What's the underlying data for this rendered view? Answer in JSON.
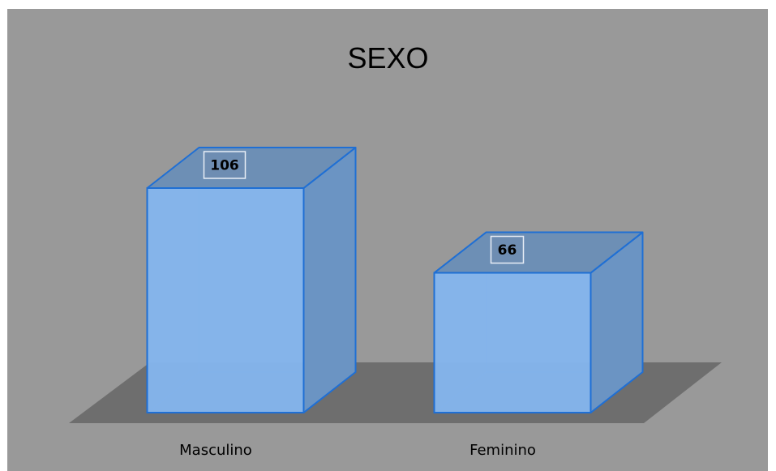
{
  "chart_data": {
    "type": "bar",
    "style": "3d-column",
    "title": "SEXO",
    "categories": [
      "Masculino",
      "Feminino"
    ],
    "values": [
      106,
      66
    ],
    "data_labels": [
      "106",
      "66"
    ],
    "xlabel": "",
    "ylabel": "",
    "ylim": [
      0,
      106
    ],
    "grid": false,
    "legend": "none",
    "colors": {
      "background": "#999999",
      "floor": "#6e6e6e",
      "bar_front": "#84b5ec",
      "bar_side": "#6b94c3",
      "bar_top": "#6d8fb5",
      "bar_edge": "#1f6fd4"
    }
  }
}
